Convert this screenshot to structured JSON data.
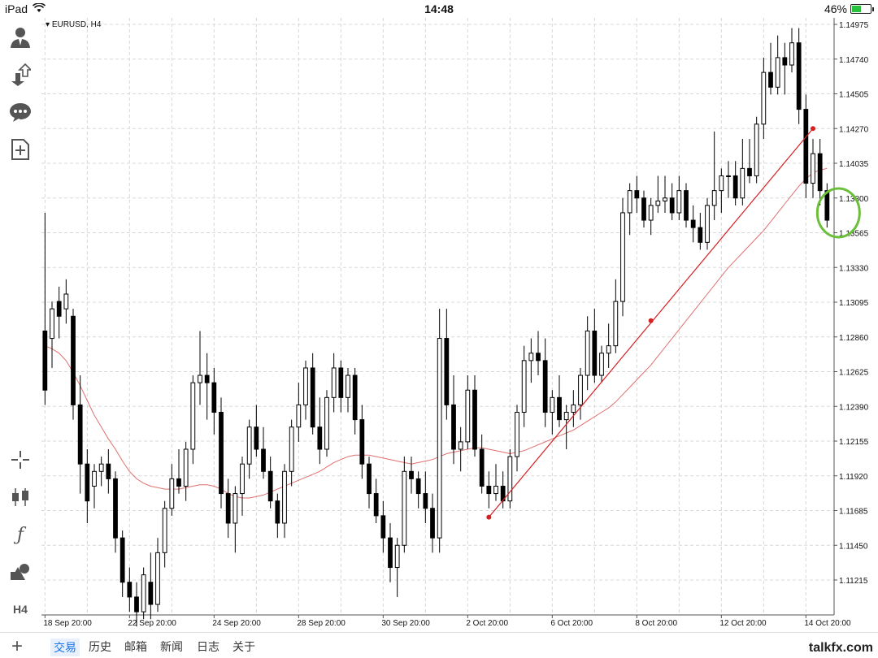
{
  "status": {
    "device": "iPad",
    "time": "14:48",
    "battery": "46%"
  },
  "symbol": "EURUSD, H4",
  "sidebar": [
    {
      "icon": "account-icon",
      "glyph": "👤"
    },
    {
      "icon": "trade-arrows-icon",
      "glyph": "⇅"
    },
    {
      "icon": "chat-icon",
      "glyph": "💬"
    },
    {
      "icon": "new-order-icon",
      "glyph": "⊞"
    },
    {
      "icon": "crosshair-icon",
      "glyph": "┼"
    },
    {
      "icon": "chart-type-icon",
      "glyph": "⫿"
    },
    {
      "icon": "indicators-icon",
      "glyph": "ƒ"
    },
    {
      "icon": "objects-icon",
      "glyph": "◭"
    },
    {
      "icon": "timeframe-icon",
      "glyph": "H4"
    }
  ],
  "tabs": [
    "交易",
    "历史",
    "邮箱",
    "新闻",
    "日志",
    "关于"
  ],
  "active_tab": "交易",
  "watermark": "talkfx.com",
  "colors": {
    "ma": "#e07070",
    "trendline": "#d42020",
    "highlight": "#6cbf3a",
    "grid": "#d8d8d8"
  },
  "chart_data": {
    "type": "candlestick",
    "y_ticks": [
      "1.14975",
      "1.14740",
      "1.14505",
      "1.14270",
      "1.14035",
      "1.13800",
      "1.13565",
      "1.13330",
      "1.13095",
      "1.12860",
      "1.12625",
      "1.12390",
      "1.12155",
      "1.11920",
      "1.11685",
      "1.11450",
      "1.11215"
    ],
    "ylim": [
      1.11,
      1.151
    ],
    "x_ticks": [
      "18 Sep 20:00",
      "22 Sep 20:00",
      "24 Sep 20:00",
      "28 Sep 20:00",
      "30 Sep 20:00",
      "2 Oct 20:00",
      "6 Oct 20:00",
      "8 Oct 20:00",
      "12 Oct 20:00",
      "14 Oct 20:00"
    ],
    "x_tick_index": [
      0,
      12,
      24,
      36,
      48,
      60,
      72,
      84,
      96,
      108
    ],
    "candles": [
      [
        1.129,
        1.137,
        1.124,
        1.125
      ],
      [
        1.1285,
        1.131,
        1.1265,
        1.1305
      ],
      [
        1.131,
        1.132,
        1.1285,
        1.13
      ],
      [
        1.1305,
        1.1325,
        1.1295,
        1.1315
      ],
      [
        1.13,
        1.1305,
        1.123,
        1.124
      ],
      [
        1.124,
        1.126,
        1.118,
        1.12
      ],
      [
        1.12,
        1.121,
        1.116,
        1.1175
      ],
      [
        1.1185,
        1.12,
        1.117,
        1.1195
      ],
      [
        1.1195,
        1.1205,
        1.1185,
        1.12
      ],
      [
        1.12,
        1.121,
        1.118,
        1.119
      ],
      [
        1.119,
        1.1195,
        1.114,
        1.115
      ],
      [
        1.115,
        1.1155,
        1.111,
        1.112
      ],
      [
        1.112,
        1.113,
        1.11,
        1.111
      ],
      [
        1.111,
        1.112,
        1.109,
        1.11
      ],
      [
        1.11,
        1.113,
        1.1095,
        1.1125
      ],
      [
        1.112,
        1.114,
        1.1095,
        1.1105
      ],
      [
        1.1105,
        1.115,
        1.11,
        1.114
      ],
      [
        1.114,
        1.1175,
        1.113,
        1.117
      ],
      [
        1.117,
        1.12,
        1.1165,
        1.119
      ],
      [
        1.119,
        1.121,
        1.118,
        1.1185
      ],
      [
        1.1185,
        1.1215,
        1.1175,
        1.121
      ],
      [
        1.121,
        1.126,
        1.12,
        1.1255
      ],
      [
        1.1255,
        1.129,
        1.124,
        1.126
      ],
      [
        1.126,
        1.1275,
        1.123,
        1.1255
      ],
      [
        1.1255,
        1.1265,
        1.122,
        1.1235
      ],
      [
        1.1235,
        1.1245,
        1.117,
        1.118
      ],
      [
        1.118,
        1.119,
        1.115,
        1.116
      ],
      [
        1.116,
        1.1185,
        1.114,
        1.118
      ],
      [
        1.118,
        1.1205,
        1.1165,
        1.12
      ],
      [
        1.12,
        1.123,
        1.119,
        1.1225
      ],
      [
        1.1225,
        1.124,
        1.1205,
        1.121
      ],
      [
        1.121,
        1.1225,
        1.119,
        1.1195
      ],
      [
        1.1195,
        1.1205,
        1.117,
        1.1175
      ],
      [
        1.1175,
        1.118,
        1.115,
        1.116
      ],
      [
        1.116,
        1.12,
        1.115,
        1.1195
      ],
      [
        1.1195,
        1.123,
        1.1185,
        1.1225
      ],
      [
        1.1225,
        1.1255,
        1.1215,
        1.124
      ],
      [
        1.124,
        1.127,
        1.123,
        1.1265
      ],
      [
        1.1265,
        1.1275,
        1.122,
        1.1225
      ],
      [
        1.1225,
        1.1245,
        1.12,
        1.121
      ],
      [
        1.121,
        1.125,
        1.1205,
        1.1245
      ],
      [
        1.1245,
        1.1275,
        1.1235,
        1.1265
      ],
      [
        1.1265,
        1.127,
        1.1235,
        1.1245
      ],
      [
        1.1245,
        1.1265,
        1.1235,
        1.126
      ],
      [
        1.126,
        1.1265,
        1.122,
        1.123
      ],
      [
        1.123,
        1.124,
        1.119,
        1.12
      ],
      [
        1.12,
        1.1205,
        1.117,
        1.118
      ],
      [
        1.118,
        1.119,
        1.116,
        1.1165
      ],
      [
        1.1165,
        1.1175,
        1.114,
        1.115
      ],
      [
        1.115,
        1.116,
        1.112,
        1.113
      ],
      [
        1.113,
        1.115,
        1.111,
        1.1145
      ],
      [
        1.1145,
        1.1205,
        1.114,
        1.1195
      ],
      [
        1.1195,
        1.1205,
        1.118,
        1.119
      ],
      [
        1.119,
        1.1195,
        1.117,
        1.118
      ],
      [
        1.118,
        1.1195,
        1.116,
        1.117
      ],
      [
        1.117,
        1.118,
        1.114,
        1.115
      ],
      [
        1.115,
        1.1305,
        1.114,
        1.1285
      ],
      [
        1.1285,
        1.1305,
        1.123,
        1.124
      ],
      [
        1.124,
        1.126,
        1.12,
        1.121
      ],
      [
        1.121,
        1.1225,
        1.1195,
        1.1215
      ],
      [
        1.1215,
        1.126,
        1.121,
        1.125
      ],
      [
        1.125,
        1.126,
        1.1205,
        1.121
      ],
      [
        1.121,
        1.122,
        1.118,
        1.1185
      ],
      [
        1.1185,
        1.1195,
        1.117,
        1.118
      ],
      [
        1.118,
        1.12,
        1.1175,
        1.1185
      ],
      [
        1.1185,
        1.1195,
        1.117,
        1.1175
      ],
      [
        1.1175,
        1.121,
        1.117,
        1.1205
      ],
      [
        1.1205,
        1.124,
        1.1195,
        1.1235
      ],
      [
        1.1235,
        1.128,
        1.1225,
        1.127
      ],
      [
        1.127,
        1.1285,
        1.1255,
        1.1275
      ],
      [
        1.1275,
        1.129,
        1.126,
        1.127
      ],
      [
        1.127,
        1.1285,
        1.1225,
        1.1235
      ],
      [
        1.1235,
        1.125,
        1.122,
        1.1245
      ],
      [
        1.1245,
        1.126,
        1.1225,
        1.123
      ],
      [
        1.123,
        1.124,
        1.121,
        1.1235
      ],
      [
        1.1235,
        1.125,
        1.1225,
        1.124
      ],
      [
        1.124,
        1.1265,
        1.123,
        1.126
      ],
      [
        1.126,
        1.13,
        1.125,
        1.129
      ],
      [
        1.129,
        1.1305,
        1.1255,
        1.126
      ],
      [
        1.126,
        1.128,
        1.1255,
        1.1275
      ],
      [
        1.1275,
        1.1295,
        1.1265,
        1.128
      ],
      [
        1.128,
        1.1325,
        1.1275,
        1.131
      ],
      [
        1.131,
        1.138,
        1.13,
        1.137
      ],
      [
        1.137,
        1.139,
        1.1355,
        1.1385
      ],
      [
        1.1385,
        1.1395,
        1.137,
        1.138
      ],
      [
        1.138,
        1.1385,
        1.136,
        1.1365
      ],
      [
        1.1365,
        1.138,
        1.1355,
        1.1375
      ],
      [
        1.1375,
        1.1395,
        1.137,
        1.1378
      ],
      [
        1.1378,
        1.1395,
        1.137,
        1.138
      ],
      [
        1.138,
        1.139,
        1.1365,
        1.137
      ],
      [
        1.137,
        1.1395,
        1.1365,
        1.1385
      ],
      [
        1.1385,
        1.139,
        1.136,
        1.1365
      ],
      [
        1.1365,
        1.1375,
        1.135,
        1.136
      ],
      [
        1.136,
        1.137,
        1.1345,
        1.135
      ],
      [
        1.135,
        1.138,
        1.1345,
        1.1375
      ],
      [
        1.1375,
        1.1425,
        1.1365,
        1.1385
      ],
      [
        1.1385,
        1.14,
        1.137,
        1.1395
      ],
      [
        1.1395,
        1.1405,
        1.138,
        1.1395
      ],
      [
        1.1395,
        1.1405,
        1.1375,
        1.138
      ],
      [
        1.138,
        1.142,
        1.1375,
        1.14
      ],
      [
        1.14,
        1.142,
        1.139,
        1.1395
      ],
      [
        1.1395,
        1.1435,
        1.139,
        1.143
      ],
      [
        1.143,
        1.1475,
        1.142,
        1.1465
      ],
      [
        1.1465,
        1.1485,
        1.145,
        1.1455
      ],
      [
        1.1455,
        1.149,
        1.145,
        1.1475
      ],
      [
        1.1475,
        1.1485,
        1.145,
        1.147
      ],
      [
        1.147,
        1.1495,
        1.1465,
        1.1485
      ],
      [
        1.1485,
        1.1495,
        1.143,
        1.144
      ],
      [
        1.144,
        1.145,
        1.138,
        1.139
      ],
      [
        1.139,
        1.142,
        1.138,
        1.141
      ],
      [
        1.141,
        1.142,
        1.1375,
        1.1385
      ],
      [
        1.1385,
        1.139,
        1.136,
        1.1365
      ]
    ],
    "ma": [
      1.128,
      1.1278,
      1.1275,
      1.127,
      1.1262,
      1.1253,
      1.1243,
      1.1233,
      1.1225,
      1.1217,
      1.121,
      1.1202,
      1.1195,
      1.119,
      1.1187,
      1.1185,
      1.1184,
      1.1183,
      1.1183,
      1.1183,
      1.1184,
      1.1185,
      1.1186,
      1.1186,
      1.1185,
      1.1183,
      1.118,
      1.1178,
      1.1177,
      1.1177,
      1.1178,
      1.1179,
      1.1181,
      1.1183,
      1.1185,
      1.1187,
      1.1189,
      1.1191,
      1.1193,
      1.1195,
      1.1198,
      1.1201,
      1.1203,
      1.1205,
      1.1206,
      1.1206,
      1.1206,
      1.1205,
      1.1204,
      1.1203,
      1.1202,
      1.1201,
      1.12,
      1.1201,
      1.1202,
      1.1203,
      1.1205,
      1.1207,
      1.1208,
      1.1209,
      1.121,
      1.1211,
      1.1211,
      1.121,
      1.1209,
      1.1208,
      1.1207,
      1.1208,
      1.1209,
      1.1211,
      1.1213,
      1.1215,
      1.1217,
      1.1219,
      1.1221,
      1.1223,
      1.1226,
      1.1229,
      1.1232,
      1.1235,
      1.1238,
      1.1242,
      1.1247,
      1.1252,
      1.1257,
      1.1262,
      1.1267,
      1.1273,
      1.1279,
      1.1285,
      1.1291,
      1.1297,
      1.1303,
      1.1309,
      1.1315,
      1.1321,
      1.1327,
      1.1333,
      1.1338,
      1.1343,
      1.1348,
      1.1353,
      1.1358,
      1.1364,
      1.137,
      1.1376,
      1.1382,
      1.1388,
      1.1393,
      1.1397,
      1.1399,
      1.14
    ],
    "trendline": {
      "start": [
        63,
        1.1164
      ],
      "mid": [
        86,
        1.1297
      ],
      "end": [
        109,
        1.1427
      ]
    }
  }
}
